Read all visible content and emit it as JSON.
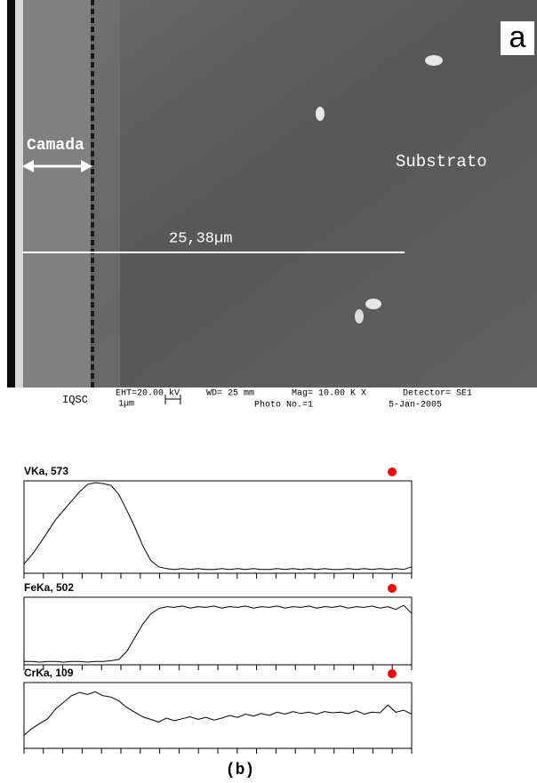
{
  "image": {
    "panel_label": "a",
    "layer_label": "Camada",
    "substrate_label": "Substrato",
    "thickness": "25,38µm"
  },
  "footer": {
    "institute": "IQSC",
    "eht": "EHT=20.00 kV",
    "scale": "1µm",
    "wd": "WD= 25 mm",
    "mag": "Mag= 10.00 K X",
    "photo": "Photo No.=1",
    "detector": "Detector= SE1",
    "date": "5-Jan-2005"
  },
  "chart_data": [
    {
      "type": "line",
      "title": "VKa, 573",
      "color": "#000000",
      "marker_color": "#ff0000",
      "ylim": [
        0,
        100
      ],
      "values": [
        10,
        20,
        32,
        45,
        58,
        68,
        78,
        88,
        96,
        98,
        97,
        95,
        85,
        68,
        50,
        30,
        14,
        7,
        5,
        4,
        5,
        4,
        5,
        4,
        4,
        5,
        4,
        5,
        4,
        5,
        4,
        4,
        5,
        4,
        5,
        4,
        5,
        4,
        5,
        4,
        4,
        5,
        4,
        5,
        4,
        5,
        4,
        5,
        4,
        7
      ]
    },
    {
      "type": "line",
      "title": "FeKa, 502",
      "color": "#000000",
      "marker_color": "#ff0000",
      "ylim": [
        0,
        100
      ],
      "values": [
        5,
        5,
        4,
        5,
        5,
        4,
        5,
        5,
        4,
        5,
        5,
        6,
        8,
        20,
        40,
        60,
        75,
        83,
        86,
        85,
        87,
        84,
        86,
        85,
        87,
        84,
        86,
        85,
        87,
        84,
        86,
        85,
        87,
        84,
        86,
        85,
        87,
        84,
        86,
        85,
        87,
        84,
        86,
        85,
        87,
        84,
        86,
        82,
        88,
        76
      ]
    },
    {
      "type": "line",
      "title": "CrKa, 109",
      "color": "#000000",
      "marker_color": "#ff0000",
      "ylim": [
        0,
        100
      ],
      "values": [
        20,
        30,
        38,
        45,
        60,
        70,
        80,
        85,
        82,
        86,
        80,
        78,
        72,
        62,
        55,
        48,
        44,
        40,
        46,
        42,
        45,
        48,
        44,
        47,
        43,
        46,
        50,
        47,
        52,
        49,
        53,
        50,
        55,
        52,
        56,
        53,
        55,
        52,
        56,
        54,
        55,
        53,
        57,
        52,
        55,
        54,
        66,
        55,
        58,
        52
      ]
    }
  ],
  "caption": "(b)"
}
